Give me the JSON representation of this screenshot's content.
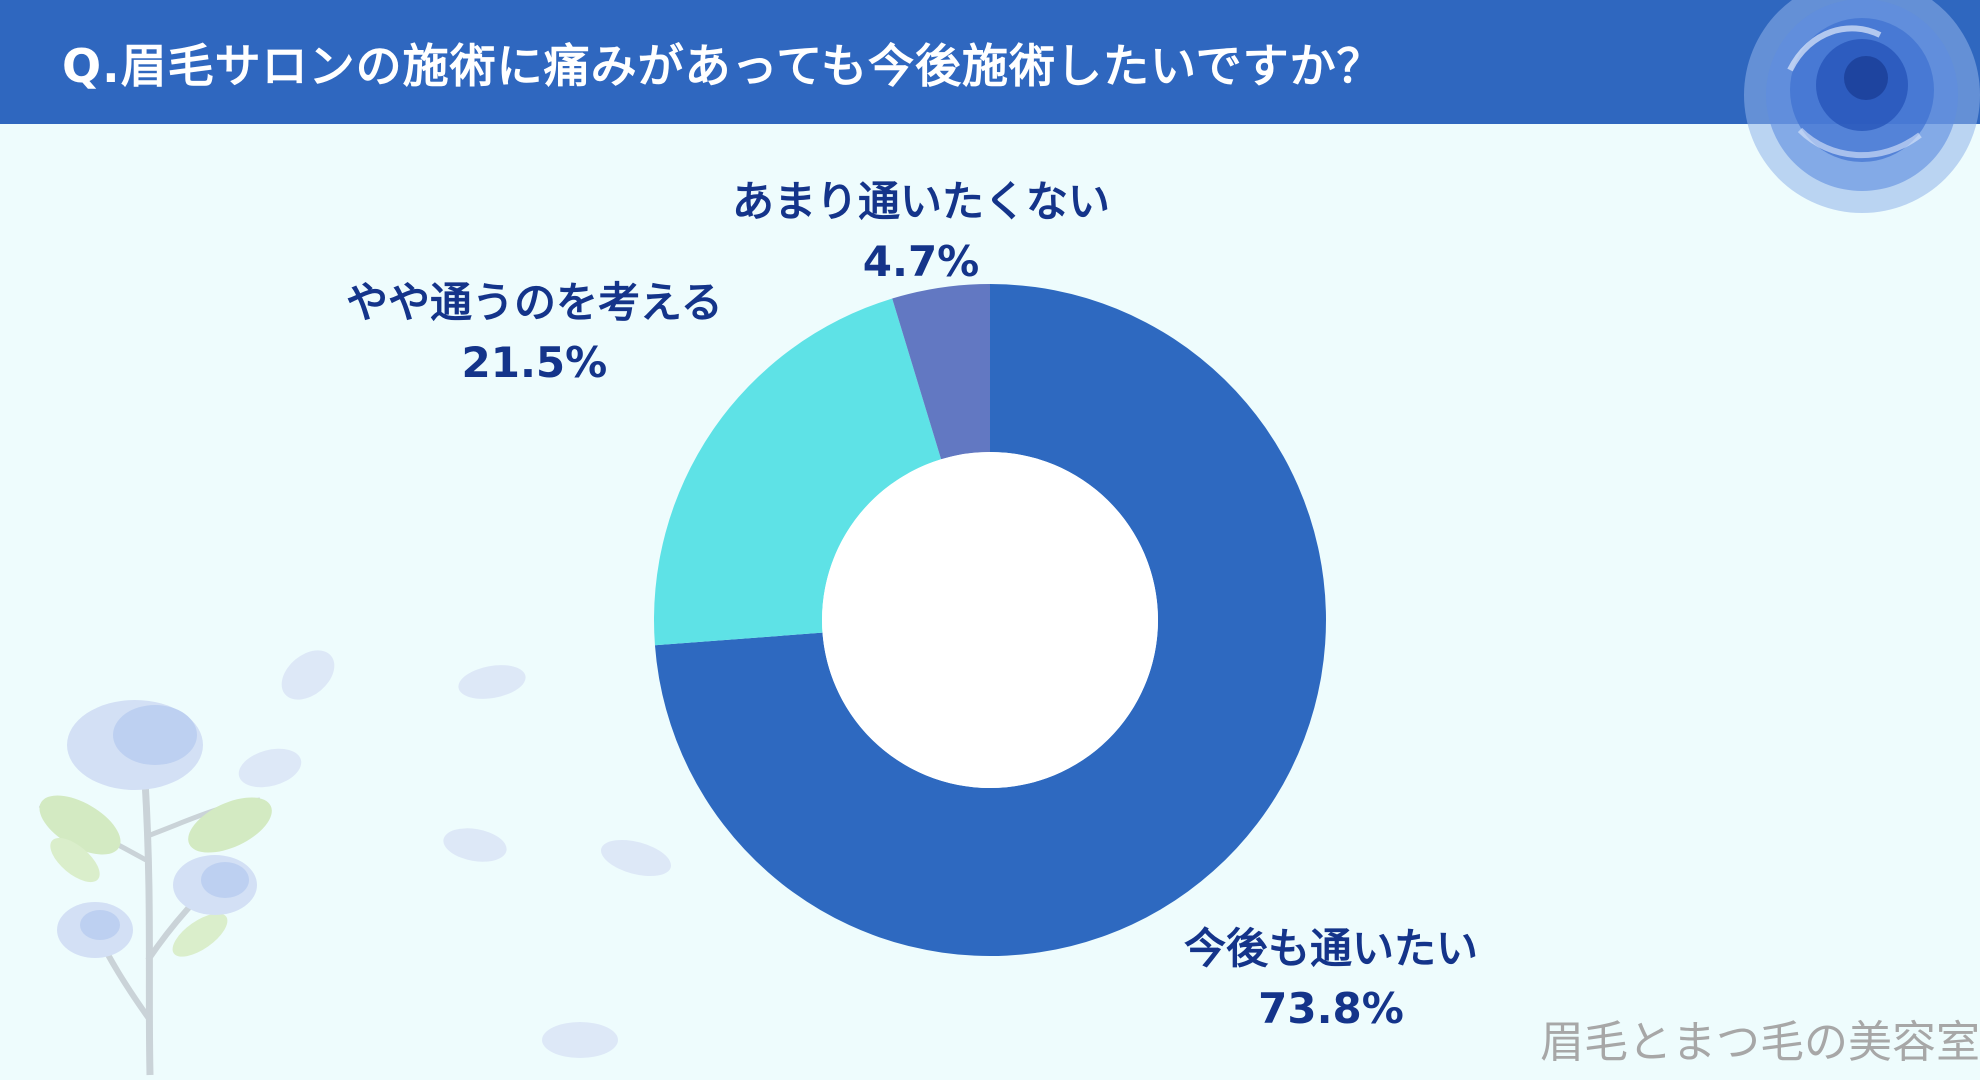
{
  "header": {
    "title": "Q.眉毛サロンの施術に痛みがあっても今後施術したいですか？"
  },
  "chart_data": {
    "type": "pie",
    "title": "Q.眉毛サロンの施術に痛みがあっても今後施術したいですか？",
    "donut": true,
    "slices": [
      {
        "label": "今後も通いたい",
        "value": 73.8,
        "value_label": "73.8%",
        "color": "#2e69c0"
      },
      {
        "label": "やや通うのを考える",
        "value": 21.5,
        "value_label": "21.5%",
        "color": "#5ee2e6"
      },
      {
        "label": "あまり通いたくない",
        "value": 4.7,
        "value_label": "4.7%",
        "color": "#6278c2"
      }
    ]
  },
  "footer": {
    "watermark": "眉毛とまつ毛の美容室"
  },
  "decor": {
    "rose_top_right": "blue-rose-illustration",
    "rose_bottom_left": "blue-rose-stem-illustration",
    "petals": "blue-petal-illustrations"
  }
}
